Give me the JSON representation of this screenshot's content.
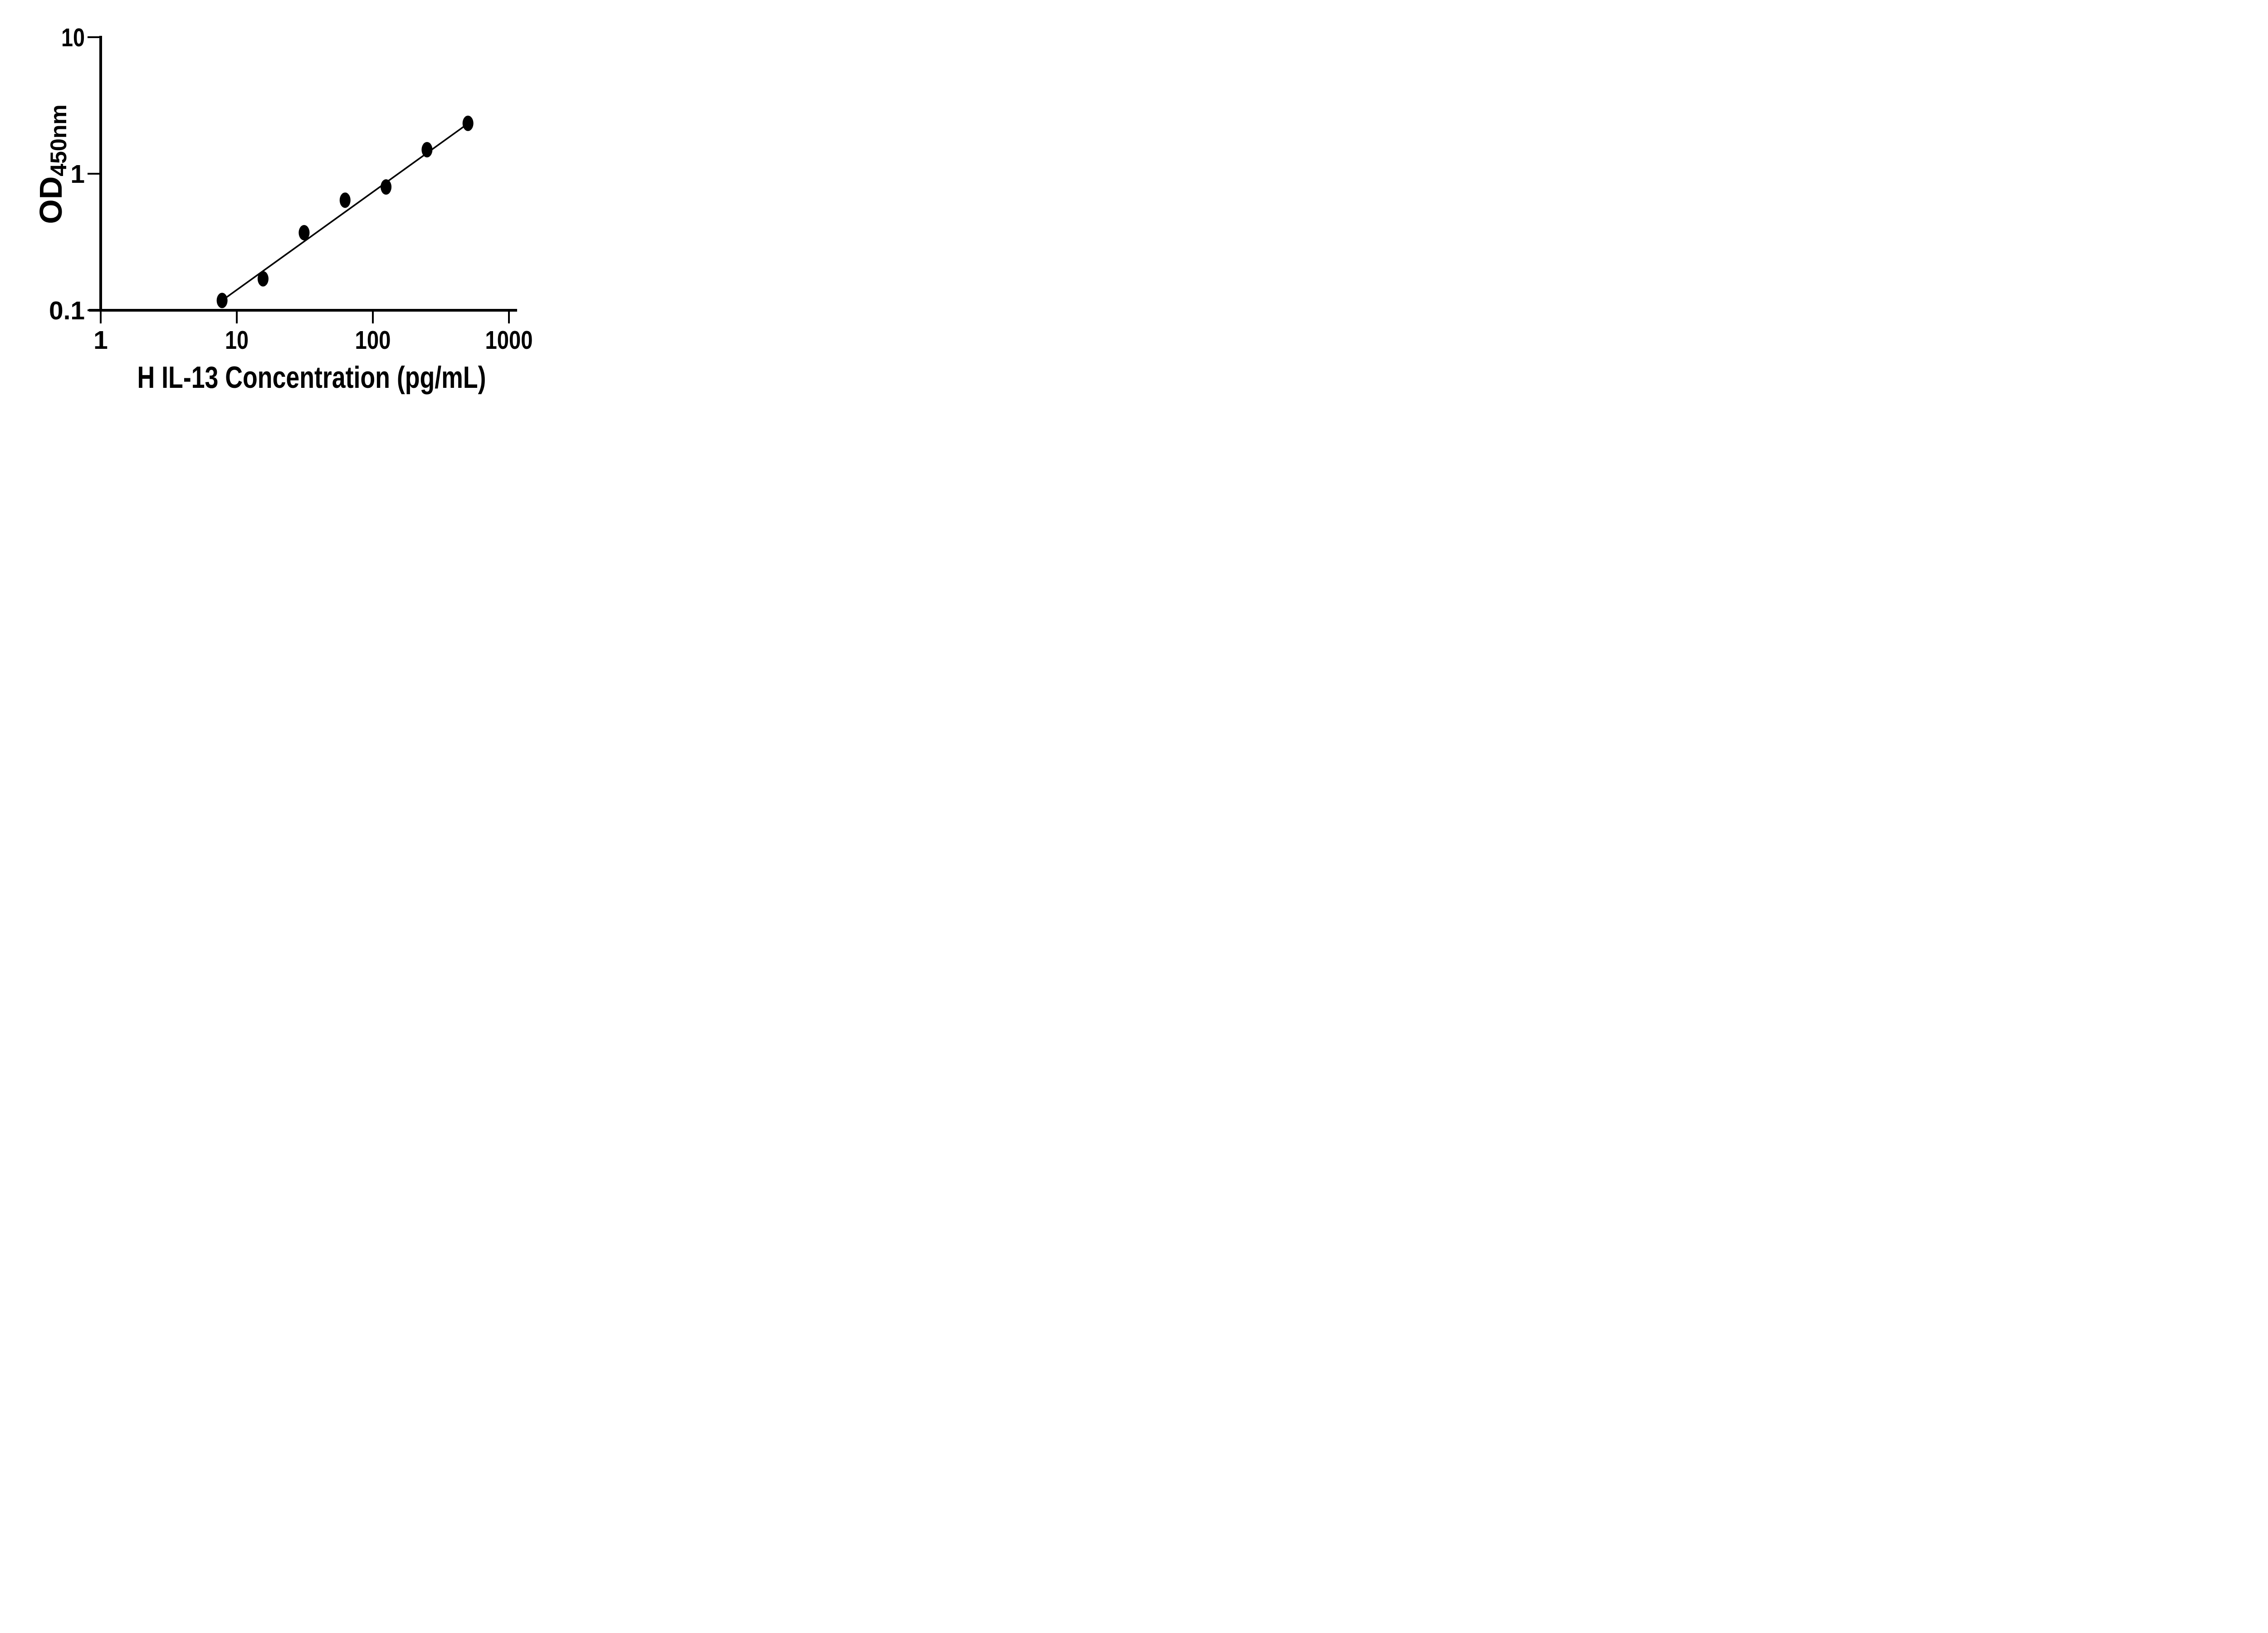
{
  "figure": {
    "background": "#ffffff",
    "ink_color": "#000000",
    "description": "ELISA standard curve, log-log scatter plot with fitted line"
  },
  "chart_data": {
    "type": "scatter",
    "title": "",
    "xlabel": "H IL-13 Concentration (pg/mL)",
    "ylabel": "OD",
    "ylabel_subscript": "450nm",
    "x_scale": "log10",
    "y_scale": "log10",
    "xlim": [
      1,
      1000
    ],
    "ylim": [
      0.1,
      10
    ],
    "grid": "off",
    "legend": "none",
    "marker_color": "#000000",
    "line_color": "#000000",
    "x_ticks": [
      {
        "value": 1,
        "label": "1"
      },
      {
        "value": 10,
        "label": "10"
      },
      {
        "value": 100,
        "label": "100"
      },
      {
        "value": 1000,
        "label": "1000"
      }
    ],
    "y_ticks": [
      {
        "value": 0.1,
        "label": "0.1"
      },
      {
        "value": 1,
        "label": "1"
      },
      {
        "value": 10,
        "label": "10"
      }
    ],
    "points": [
      {
        "x": 7.8,
        "y": 0.118
      },
      {
        "x": 15.6,
        "y": 0.17
      },
      {
        "x": 31.25,
        "y": 0.37
      },
      {
        "x": 62.5,
        "y": 0.64
      },
      {
        "x": 125,
        "y": 0.8
      },
      {
        "x": 250,
        "y": 1.5
      },
      {
        "x": 500,
        "y": 2.34
      }
    ],
    "trend_line": {
      "x1": 7.8,
      "y1": 0.118,
      "x2": 500,
      "y2": 2.33
    }
  }
}
